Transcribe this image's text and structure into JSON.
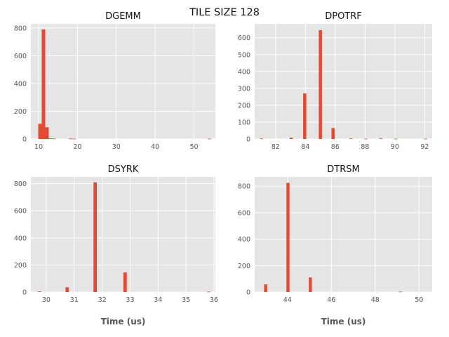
{
  "suptitle": "TILE SIZE 128",
  "style": {
    "bar_color": "#E24A33",
    "axes_bg": "#E5E5E5",
    "grid_color": "#FFFFFF"
  },
  "chart_data": [
    {
      "type": "bar",
      "title": "DGEMM",
      "xlabel": "",
      "ylabel": "",
      "xlim": [
        8,
        55.5
      ],
      "ylim": [
        0,
        830
      ],
      "xticks": [
        10,
        20,
        30,
        40,
        50
      ],
      "yticks": [
        0,
        200,
        400,
        600,
        800
      ],
      "grid": true,
      "bin_width": 0.9,
      "bins": [
        {
          "x": 9.9,
          "count": 110
        },
        {
          "x": 10.8,
          "count": 790
        },
        {
          "x": 11.7,
          "count": 85
        },
        {
          "x": 12.6,
          "count": 5
        },
        {
          "x": 13.5,
          "count": 3
        },
        {
          "x": 17.8,
          "count": 3
        },
        {
          "x": 18.7,
          "count": 2
        },
        {
          "x": 53.5,
          "count": 2
        }
      ]
    },
    {
      "type": "bar",
      "title": "DPOTRF",
      "xlabel": "",
      "ylabel": "",
      "xlim": [
        80.6,
        92.5
      ],
      "ylim": [
        0,
        682
      ],
      "xticks": [
        82,
        84,
        86,
        88,
        90,
        92
      ],
      "yticks": [
        0,
        100,
        200,
        300,
        400,
        500,
        600
      ],
      "grid": true,
      "bin_width": 0.21,
      "bins": [
        {
          "x": 80.95,
          "count": 3
        },
        {
          "x": 82.95,
          "count": 8
        },
        {
          "x": 83.85,
          "count": 270
        },
        {
          "x": 84.9,
          "count": 645
        },
        {
          "x": 85.75,
          "count": 65
        },
        {
          "x": 86.95,
          "count": 3
        },
        {
          "x": 87.95,
          "count": 2
        },
        {
          "x": 88.95,
          "count": 3
        },
        {
          "x": 89.95,
          "count": 2
        },
        {
          "x": 91.95,
          "count": 2
        }
      ]
    },
    {
      "type": "bar",
      "title": "DSYRK",
      "xlabel": "Time (us)",
      "ylabel": "",
      "xlim": [
        29.45,
        36.05
      ],
      "ylim": [
        0,
        850
      ],
      "xticks": [
        30,
        31,
        32,
        33,
        34,
        35,
        36
      ],
      "yticks": [
        0,
        200,
        400,
        600,
        800
      ],
      "grid": true,
      "bin_width": 0.12,
      "bins": [
        {
          "x": 29.7,
          "count": 5
        },
        {
          "x": 30.69,
          "count": 35
        },
        {
          "x": 31.69,
          "count": 810
        },
        {
          "x": 32.76,
          "count": 145
        },
        {
          "x": 35.75,
          "count": 3
        }
      ]
    },
    {
      "type": "bar",
      "title": "DTRSM",
      "xlabel": "Time (us)",
      "ylabel": "",
      "xlim": [
        42.5,
        50.6
      ],
      "ylim": [
        0,
        870
      ],
      "xticks": [
        44,
        46,
        48,
        50
      ],
      "yticks": [
        0,
        200,
        400,
        600,
        800
      ],
      "grid": true,
      "bin_width": 0.14,
      "bins": [
        {
          "x": 42.93,
          "count": 58
        },
        {
          "x": 43.95,
          "count": 825
        },
        {
          "x": 44.97,
          "count": 110
        },
        {
          "x": 49.08,
          "count": 3
        }
      ]
    }
  ]
}
